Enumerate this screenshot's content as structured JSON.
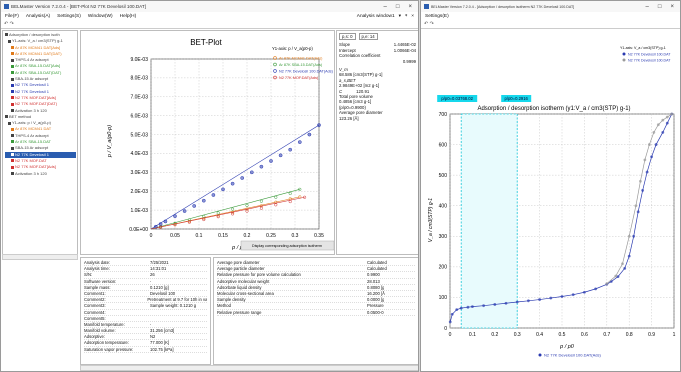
{
  "window1": {
    "title": "BELMaster Version 7.2.0.4 - [BET-Plot N2 77K Develosil 100.DAT]",
    "menu": [
      "File(F)",
      "Analysis(A)",
      "Settings(S)",
      "Window(W)",
      "Help(H)"
    ],
    "window_label": "Analysis window1",
    "tree": [
      {
        "t": "Adsorption / desorption isoth",
        "c": "#444"
      },
      {
        "t": "Y1-axis: V_a / cm3(STP) g-1",
        "c": "#444"
      },
      {
        "t": "Ar 87K MCM41 DAT[Ads]",
        "c": "#e07a1a"
      },
      {
        "t": "Ar 87K MCM41 DAT(DAT)",
        "c": "#e07a1a"
      },
      {
        "t": "THPS-4 Ar adsorpt",
        "c": "#444"
      },
      {
        "t": "Ar 87K SBA-15.DAT[Ads]",
        "c": "#3a9a3a"
      },
      {
        "t": "Ar 87K SBA-15.DAT(DAT)",
        "c": "#3a9a3a"
      },
      {
        "t": "SBA-15 Ar adsorpt",
        "c": "#444"
      },
      {
        "t": "N2 77K Develosil 1",
        "c": "#2a3ab0"
      },
      {
        "t": "N2 77K Develosil 1",
        "c": "#2a3ab0"
      },
      {
        "t": "N2 77K MOF.DAT[Ads]",
        "c": "#d03030"
      },
      {
        "t": "N2 77K MOF.DAT(DAT)",
        "c": "#d03030"
      },
      {
        "t": "Activation 3 h 120",
        "c": "#444"
      },
      {
        "t": "BET method",
        "c": "#444"
      },
      {
        "t": "Y1-axis: p / V_a(p0-p)",
        "c": "#444"
      },
      {
        "t": "Ar 87K MCM41 DAT",
        "c": "#e07a1a"
      },
      {
        "t": "THPS-4 Ar adsorpt",
        "c": "#444"
      },
      {
        "t": "Ar 87K SBA-15.DAT",
        "c": "#3a9a3a"
      },
      {
        "t": "SBA-15 Ar adsorpt",
        "c": "#444"
      },
      {
        "t": "N2 77K Develosil 1",
        "c": "#ffffff",
        "sel": true
      },
      {
        "t": "N2 77K MOF.DAT",
        "c": "#d03030"
      },
      {
        "t": "N2 77K MOF.DAT[Ads]",
        "c": "#d03030"
      },
      {
        "t": "Activation 3 h 120",
        "c": "#444"
      }
    ],
    "plot": {
      "title": "BET-Plot",
      "ylabel": "p / V_a(p0-p)",
      "xlabel": "p / p0",
      "legend_title": "Y1-axis:  p / V_a(p0-p)",
      "legend": [
        {
          "name": "Ar 87K MCM41 DAT(Ads)",
          "color": "#e07a1a"
        },
        {
          "name": "Ar 87K SBA-15.DAT(Ads)",
          "color": "#3a9a3a"
        },
        {
          "name": "N2 77K Develosil 100.DAT(Ads)",
          "color": "#2a3ab0"
        },
        {
          "name": "N2 77K MOF.DAT(Ads)",
          "color": "#d03030"
        }
      ],
      "button": "Display corresponding adsorption isotherm"
    },
    "chart_data": {
      "type": "scatter",
      "title": "BET-Plot",
      "xlabel": "p / p0",
      "ylabel": "p / V_a(p0-p)",
      "xlim": [
        0,
        0.35
      ],
      "ylim": [
        0,
        0.009
      ],
      "xticks": [
        "0",
        "0.05",
        "0.1",
        "0.15",
        "0.2",
        "0.25",
        "0.3",
        "0.35"
      ],
      "yticks": [
        "0.0E+00",
        "1.0E-03",
        "2.0E-03",
        "3.0E-03",
        "4.0E-03",
        "5.0E-03",
        "6.0E-03",
        "7.0E-03",
        "8.0E-03",
        "9.0E-03"
      ],
      "series": [
        {
          "name": "Ar 87K MCM41 DAT(Ads)",
          "color": "#e07a1a",
          "x": [
            0.02,
            0.05,
            0.08,
            0.11,
            0.14,
            0.17,
            0.2,
            0.23,
            0.26,
            0.29,
            0.31
          ],
          "y": [
            0.0001,
            0.00025,
            0.0004,
            0.00055,
            0.0007,
            0.00088,
            0.00105,
            0.00123,
            0.00142,
            0.0016,
            0.0017
          ]
        },
        {
          "name": "Ar 87K SBA-15.DAT(Ads)",
          "color": "#3a9a3a",
          "x": [
            0.02,
            0.05,
            0.08,
            0.11,
            0.14,
            0.17,
            0.2,
            0.23,
            0.26,
            0.29,
            0.31
          ],
          "y": [
            0.00012,
            0.0003,
            0.00048,
            0.00066,
            0.00085,
            0.00105,
            0.00125,
            0.00147,
            0.00168,
            0.00188,
            0.0021
          ]
        },
        {
          "name": "N2 77K Develosil 100.DAT(Ads)",
          "color": "#2a3ab0",
          "x": [
            0.01,
            0.02,
            0.03,
            0.05,
            0.07,
            0.09,
            0.11,
            0.13,
            0.15,
            0.17,
            0.19,
            0.21,
            0.23,
            0.25,
            0.27,
            0.29,
            0.31,
            0.33,
            0.35
          ],
          "y": [
            0.00012,
            0.00026,
            0.0004,
            0.00068,
            0.00095,
            0.00122,
            0.0015,
            0.0018,
            0.0021,
            0.0024,
            0.0027,
            0.003,
            0.0033,
            0.0036,
            0.0039,
            0.0042,
            0.0046,
            0.005,
            0.0055
          ]
        },
        {
          "name": "N2 77K MOF.DAT(Ads)",
          "color": "#d03030",
          "x": [
            0.02,
            0.05,
            0.08,
            0.11,
            0.14,
            0.17,
            0.2,
            0.23,
            0.26,
            0.29,
            0.32
          ],
          "y": [
            0.0001,
            0.00022,
            0.00036,
            0.0005,
            0.00065,
            0.0008,
            0.00095,
            0.0011,
            0.00128,
            0.00145,
            0.00168
          ]
        }
      ]
    },
    "results": {
      "p_from": "p,s: 0",
      "p_to": "p,e: 14",
      "rows": [
        [
          "Slope",
          "1.4465E-02"
        ],
        [
          "Intercept",
          "1.0066E-04"
        ],
        [
          "Correlation coefficient",
          ""
        ],
        [
          "",
          "0.9999"
        ]
      ],
      "vm_label": "V_m",
      "vm": "68.586 [cm3(STP) g-1]",
      "abet_label": "a_s,BET",
      "abet": "2.9849E+02 [m2 g-1]",
      "c_label": "C",
      "c": "120.91",
      "tpv_label": "Total pore volume",
      "tpv": "0.4856 [cm3 g-1]",
      "tpv_p": "(p/p0=0.9900)",
      "apd_label": "Average pore diameter",
      "apd": "123.26 [Å]"
    },
    "info": [
      [
        "Analysis date:",
        "7/25/2021"
      ],
      [
        "Analysis time:",
        "14:31:01"
      ],
      [
        "S/N:",
        "26"
      ],
      [
        "Software version:",
        "-"
      ],
      [
        "Sample mass:",
        "0.1210 [g]"
      ],
      [
        "Comment1:",
        "Develosil 100"
      ],
      [
        "Comment2:",
        "Pretreatment at 9.7 for 10h in vac"
      ],
      [
        "Comment3:",
        "Sample weight: 0.1210 g"
      ],
      [
        "Comment4:",
        ""
      ],
      [
        "Comment5:",
        ""
      ],
      [
        "Manifold temperature:",
        "-"
      ],
      [
        "Manifold volume:",
        "31.256 [cm3]"
      ],
      [
        "Adsorptive:",
        "N2"
      ],
      [
        "Adsorption temperature:",
        "77.000 [K]"
      ],
      [
        "Saturation vapor pressure:",
        "102.75 [kPa]"
      ]
    ],
    "info2": [
      [
        "Average pore diameter",
        "Calculated"
      ],
      [
        "Average particle diameter",
        "Calculated"
      ],
      [
        "Relative pressure for pore volume calculation",
        "0.9900"
      ],
      [
        "Adsorptive molecular weight",
        "28.013"
      ],
      [
        "Adsorbate liquid density",
        "0.8080 [g"
      ],
      [
        "Molecular cross-sectional area",
        "16.200 [Å"
      ],
      [
        "Sample density",
        "0.0000 [g"
      ],
      [
        "Method",
        "Pressure"
      ],
      [
        "Relative pressure range",
        "0.0500-0"
      ]
    ]
  },
  "window2": {
    "title": "BELMaster Version 7.2.0.4 - [Adsorption / desorption isotherm N2 77K Develosil 100.DAT]",
    "menu": [
      "Settings(E)"
    ],
    "plot": {
      "title": "Adsorption / desorption isotherm (y1:V_a / cm3(STP) g-1)",
      "cursor1": "p/p0=0.03768.02",
      "cursor2": "p/p0=0.2916",
      "ylabel": "V_a / cm3(STP) g-1",
      "xlabel": "p / p0",
      "legend_title": "Y1-axis: V_a / cm3(STP) g-1",
      "legend": [
        {
          "name": "N2 77K Develosil 100.DAT",
          "color": "#2a3ab0"
        },
        {
          "name": "N2 77K Develosil 100.DAT",
          "color": "#9a9a9a"
        }
      ],
      "bottom_legend": "N2 77K Develosil 100.DAT(Ads)"
    },
    "chart_data": {
      "type": "line",
      "title": "Adsorption / desorption isotherm",
      "xlabel": "p / p0",
      "ylabel": "V_a / cm3(STP) g-1",
      "xlim": [
        0,
        1
      ],
      "ylim": [
        0,
        700
      ],
      "xticks": [
        "0",
        "0.1",
        "0.2",
        "0.3",
        "0.4",
        "0.5",
        "0.6",
        "0.7",
        "0.8",
        "0.9",
        "1"
      ],
      "yticks": [
        "0",
        "100",
        "200",
        "300",
        "400",
        "500",
        "600",
        "700"
      ],
      "series": [
        {
          "name": "N2 77K Develosil 100.DAT (Ads)",
          "color": "#2a3ab0",
          "x": [
            0.001,
            0.01,
            0.03,
            0.05,
            0.08,
            0.1,
            0.15,
            0.2,
            0.25,
            0.3,
            0.35,
            0.4,
            0.45,
            0.5,
            0.55,
            0.6,
            0.65,
            0.7,
            0.72,
            0.75,
            0.78,
            0.8,
            0.82,
            0.84,
            0.86,
            0.88,
            0.9,
            0.92,
            0.95,
            0.97,
            0.99
          ],
          "y": [
            20,
            45,
            60,
            65,
            68,
            70,
            73,
            77,
            81,
            85,
            89,
            93,
            98,
            103,
            109,
            117,
            128,
            143,
            152,
            168,
            195,
            235,
            300,
            380,
            450,
            510,
            560,
            600,
            640,
            670,
            700
          ]
        },
        {
          "name": "N2 77K Develosil 100.DAT (Des)",
          "color": "#9a9a9a",
          "x": [
            0.99,
            0.97,
            0.95,
            0.93,
            0.91,
            0.89,
            0.87,
            0.85,
            0.83,
            0.8,
            0.77,
            0.74,
            0.7
          ],
          "y": [
            700,
            690,
            680,
            665,
            640,
            600,
            550,
            480,
            400,
            300,
            210,
            170,
            145
          ]
        }
      ]
    }
  }
}
